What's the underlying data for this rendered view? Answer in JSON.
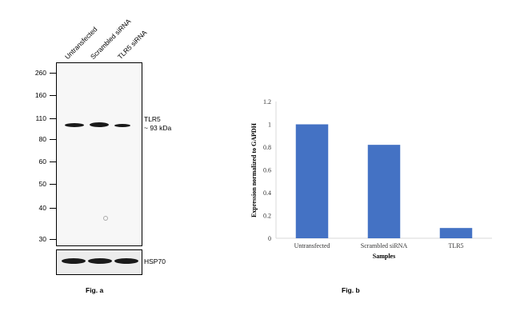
{
  "blot": {
    "lanes": [
      "Untransfected",
      "Scrambled siRNA",
      "TLR5 siRNA"
    ],
    "mw_markers": [
      "260",
      "160",
      "110",
      "80",
      "60",
      "50",
      "40",
      "30"
    ],
    "target_label": "TLR5",
    "target_size": "~ 93 kDa",
    "loading_label": "HSP70",
    "caption": "Fig. a",
    "band_intensity": [
      0.9,
      1.0,
      0.35
    ]
  },
  "chart_data": {
    "type": "bar",
    "categories": [
      "Untransfected",
      "Scrambled siRNA",
      "TLR5"
    ],
    "values": [
      1.0,
      0.82,
      0.09
    ],
    "xlabel": "Samples",
    "ylabel": "Expression normalized to GAPDH",
    "ylim": [
      0,
      1.2
    ],
    "yticks": [
      "0",
      "0.2",
      "0.4",
      "0.6",
      "0.8",
      "1",
      "1.2"
    ],
    "bar_color": "#4472c4",
    "caption": "Fig. b"
  }
}
